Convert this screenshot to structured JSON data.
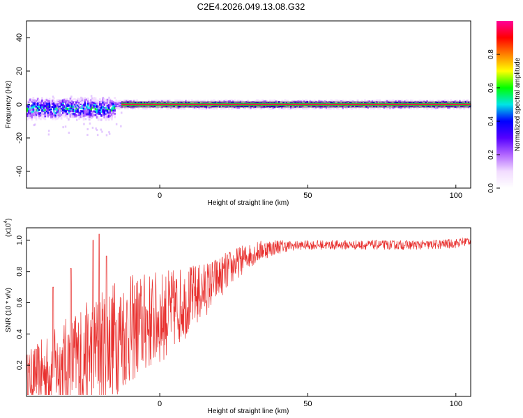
{
  "title": "C2E4.2026.049.13.08.G32",
  "chart_data": [
    {
      "type": "heatmap",
      "xlabel": "Height of straight line (km)",
      "ylabel": "Frequency (Hz)",
      "xlim": [
        -45,
        105
      ],
      "ylim": [
        -50,
        50
      ],
      "xticks": [
        0,
        50,
        100
      ],
      "yticks": [
        40,
        20,
        0,
        -20,
        -40
      ],
      "ridge_frequency_hz": 0,
      "band_halfwidth_hz": 1.5,
      "noisy_region_km": [
        -45,
        -15
      ],
      "noisy_ridge_frequency_hz": -2.5,
      "colorbar": {
        "label": "Normalized spectral amplitude",
        "range": [
          0.0,
          1.0
        ],
        "ticks": [
          0.0,
          0.2,
          0.4,
          0.6,
          0.8
        ],
        "tick_labels": [
          "0.0",
          "0.2",
          "0.4",
          "0.6",
          "0.8"
        ],
        "colormap": [
          "#ffffff",
          "#f2dcff",
          "#b266ff",
          "#5500ff",
          "#0000ff",
          "#00e5e5",
          "#00ff00",
          "#ffff00",
          "#ff8000",
          "#ff0000",
          "#ff0099"
        ]
      }
    },
    {
      "type": "line",
      "xlabel": "Height of straight line (km)",
      "ylabel": "SNR (10 * v/v)",
      "yscale_label": "(x10",
      "yscale_exponent": "4",
      "xlim": [
        -45,
        105
      ],
      "ylim": [
        0,
        1.08
      ],
      "xticks": [
        0,
        50,
        100
      ],
      "yticks": [
        0.2,
        0.4,
        0.6,
        0.8,
        1.0
      ],
      "ytick_labels": [
        "0.2",
        "0.4",
        "0.6",
        "0.8",
        "1.0"
      ],
      "color": "#e8302e",
      "series": [
        {
          "name": "SNR",
          "trend_x": [
            -45,
            -35,
            -25,
            -15,
            -5,
            0,
            5,
            10,
            15,
            20,
            25,
            30,
            35,
            40,
            50,
            60,
            70,
            80,
            90,
            100,
            105
          ],
          "trend_y": [
            0.12,
            0.18,
            0.26,
            0.38,
            0.47,
            0.5,
            0.56,
            0.62,
            0.68,
            0.76,
            0.84,
            0.9,
            0.94,
            0.96,
            0.97,
            0.97,
            0.97,
            0.97,
            0.97,
            0.98,
            1.0
          ],
          "noise_x": [
            -45,
            -30,
            -15,
            0,
            10,
            20,
            30,
            45,
            105
          ],
          "noise_amplitude": [
            0.16,
            0.32,
            0.38,
            0.3,
            0.22,
            0.14,
            0.08,
            0.03,
            0.03
          ],
          "peak_x": [
            -22.5,
            -20.5,
            -18.0,
            -30.0,
            -36.0
          ],
          "peak_y": [
            1.0,
            1.04,
            0.9,
            0.82,
            0.7
          ]
        }
      ]
    }
  ]
}
